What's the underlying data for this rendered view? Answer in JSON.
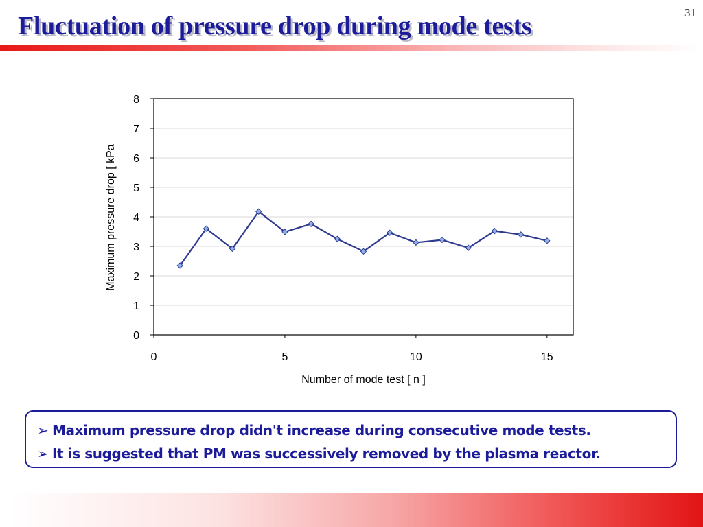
{
  "slide": {
    "title": "Fluctuation of pressure drop during mode tests",
    "page_number": "31"
  },
  "notes": {
    "bullet_glyph": "➢",
    "lines": [
      "Maximum pressure drop didn't increase during consecutive mode tests.",
      "It is suggested that PM was successively removed by the plasma reactor."
    ]
  },
  "colors": {
    "title": "#1c1c9a",
    "series_line": "#2e3a8f",
    "marker_fill": "#8fb0e8",
    "accent_red": "#e21414"
  },
  "chart_data": {
    "type": "line",
    "title": "",
    "xlabel": "Number of mode test [ n ]",
    "ylabel": "Maximum pressure drop [ kPa",
    "xlim": [
      0,
      16
    ],
    "ylim": [
      0,
      8
    ],
    "x_ticks": [
      0,
      5,
      10,
      15
    ],
    "y_ticks": [
      0,
      1,
      2,
      3,
      4,
      5,
      6,
      7,
      8
    ],
    "grid": "horizontal",
    "legend": "none",
    "marker": "diamond",
    "series": [
      {
        "x": [
          1,
          2,
          3,
          4,
          5,
          6,
          7,
          8,
          9,
          10,
          11,
          12,
          13,
          14,
          15
        ],
        "y": [
          2.35,
          3.6,
          2.92,
          4.18,
          3.49,
          3.76,
          3.25,
          2.83,
          3.46,
          3.13,
          3.22,
          2.95,
          3.52,
          3.4,
          3.19
        ]
      }
    ]
  }
}
